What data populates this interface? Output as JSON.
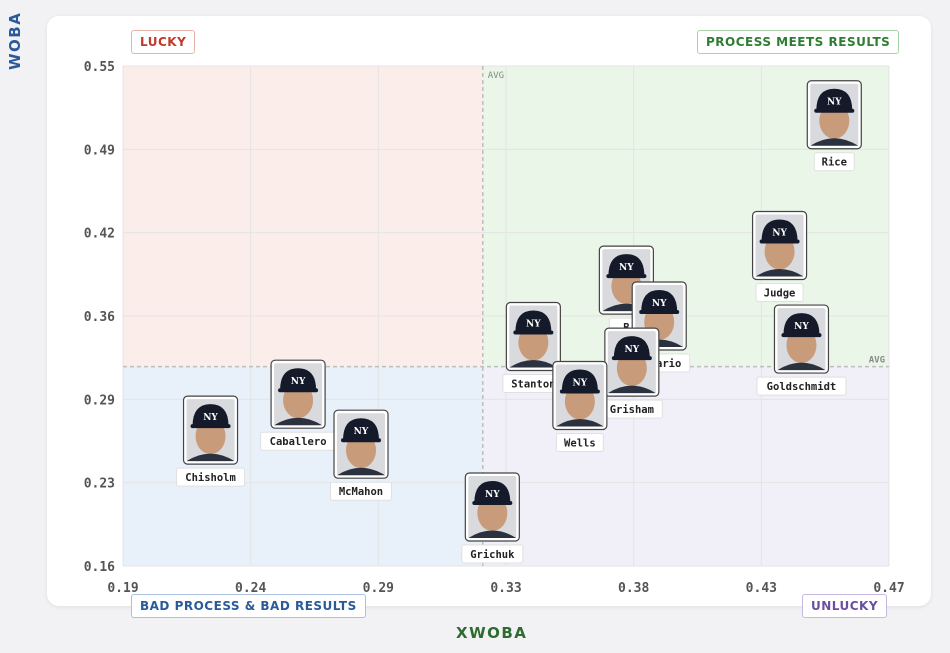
{
  "quadrants": {
    "top_left": "LUCKY",
    "top_right": "PROCESS MEETS RESULTS",
    "bottom_left": "BAD PROCESS & BAD RESULTS",
    "bottom_right": "UNLUCKY"
  },
  "colors": {
    "lucky_bg": "#fbeeea",
    "pmr_bg": "#eaf6e8",
    "bpbr_bg": "#e8f0fa",
    "unlucky_bg": "#f1eff8",
    "grid": "#e4e4e4",
    "avg_line": "#bdbdbd",
    "tick": "#555555"
  },
  "chart_data": {
    "type": "scatter",
    "xlabel": "XWOBA",
    "ylabel": "WOBA",
    "xlim": [
      0.19,
      0.47
    ],
    "ylim": [
      0.16,
      0.55
    ],
    "x_ticks": [
      "0.19",
      "0.24",
      "0.29",
      "0.33",
      "0.38",
      "0.43",
      "0.47"
    ],
    "y_ticks": [
      "0.55",
      "0.49",
      "0.42",
      "0.36",
      "0.29",
      "0.23",
      "0.16"
    ],
    "avg_label": "AVG",
    "avg_x": 0.3215,
    "avg_y": 0.3155,
    "grid": true,
    "points": [
      {
        "name": "Rice",
        "x": 0.45,
        "y": 0.512
      },
      {
        "name": "Judge",
        "x": 0.43,
        "y": 0.41
      },
      {
        "name": "Goldschmidt",
        "x": 0.438,
        "y": 0.337
      },
      {
        "name": "B",
        "x": 0.374,
        "y": 0.383
      },
      {
        "name": "Rosario",
        "x": 0.386,
        "y": 0.355
      },
      {
        "name": "Grisham",
        "x": 0.376,
        "y": 0.319
      },
      {
        "name": "Stanton",
        "x": 0.34,
        "y": 0.339
      },
      {
        "name": "Wells",
        "x": 0.357,
        "y": 0.293
      },
      {
        "name": "Grichuk",
        "x": 0.325,
        "y": 0.206
      },
      {
        "name": "Caballero",
        "x": 0.254,
        "y": 0.294
      },
      {
        "name": "McMahon",
        "x": 0.277,
        "y": 0.255
      },
      {
        "name": "Chisholm",
        "x": 0.222,
        "y": 0.266
      }
    ]
  }
}
